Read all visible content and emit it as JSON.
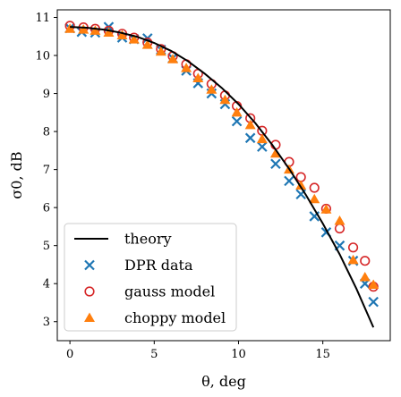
{
  "chart_data": {
    "type": "scatter",
    "xlabel": "θ, deg",
    "ylabel": "σ0, dB",
    "xlim": [
      -0.75,
      19.0
    ],
    "ylim": [
      2.5,
      11.2
    ],
    "xticks": [
      0,
      5,
      10,
      15
    ],
    "yticks": [
      3,
      4,
      5,
      6,
      7,
      8,
      9,
      10,
      11
    ],
    "grid": false,
    "legend_position": "lower-left",
    "series": [
      {
        "name": "theory",
        "kind": "line",
        "color": "#000000",
        "x": [
          0,
          1,
          2,
          3,
          4,
          5,
          6,
          7,
          8,
          9,
          10,
          11,
          12,
          13,
          14,
          15,
          16,
          17,
          18
        ],
        "y": [
          10.75,
          10.73,
          10.68,
          10.6,
          10.49,
          10.33,
          10.12,
          9.85,
          9.52,
          9.15,
          8.72,
          8.22,
          7.65,
          7.02,
          6.33,
          5.58,
          4.77,
          3.86,
          2.85
        ]
      },
      {
        "name": "DPR data",
        "kind": "x-marker",
        "color": "#1f77b4",
        "x": [
          0,
          0.7,
          1.5,
          2.3,
          3.1,
          3.8,
          4.6,
          5.4,
          6.1,
          6.9,
          7.6,
          8.4,
          9.2,
          9.9,
          10.7,
          11.4,
          12.2,
          13.0,
          13.7,
          14.5,
          15.2,
          16.0,
          16.8,
          17.5,
          18.0
        ],
        "y": [
          10.72,
          10.62,
          10.6,
          10.75,
          10.47,
          10.43,
          10.45,
          10.15,
          9.93,
          9.6,
          9.27,
          9.0,
          8.72,
          8.27,
          7.83,
          7.6,
          7.15,
          6.7,
          6.35,
          5.77,
          5.35,
          5.0,
          4.6,
          4.0,
          3.52
        ]
      },
      {
        "name": "gauss model",
        "kind": "circle",
        "color": "#d62728",
        "x": [
          0,
          0.8,
          1.5,
          2.3,
          3.1,
          3.8,
          4.6,
          5.4,
          6.1,
          6.9,
          7.6,
          8.4,
          9.2,
          9.9,
          10.7,
          11.4,
          12.2,
          13.0,
          13.7,
          14.5,
          15.2,
          16.0,
          16.8,
          17.5,
          18.0
        ],
        "y": [
          10.78,
          10.74,
          10.7,
          10.65,
          10.57,
          10.47,
          10.34,
          10.17,
          9.98,
          9.77,
          9.52,
          9.25,
          8.95,
          8.67,
          8.35,
          8.02,
          7.65,
          7.2,
          6.8,
          6.52,
          5.97,
          5.45,
          4.95,
          4.6,
          3.92
        ]
      },
      {
        "name": "choppy model",
        "kind": "triangle",
        "color": "#ff7f0e",
        "x": [
          0,
          0.8,
          1.5,
          2.3,
          3.1,
          3.8,
          4.6,
          5.4,
          6.1,
          6.9,
          7.6,
          8.4,
          9.2,
          9.9,
          10.7,
          11.4,
          12.2,
          13.0,
          13.7,
          14.5,
          15.2,
          16.0,
          16.8,
          17.5,
          18.0
        ],
        "y": [
          10.7,
          10.68,
          10.65,
          10.6,
          10.53,
          10.42,
          10.28,
          10.1,
          9.9,
          9.67,
          9.4,
          9.1,
          8.83,
          8.5,
          8.17,
          7.8,
          7.42,
          7.0,
          6.58,
          6.22,
          5.95,
          5.65,
          4.62,
          4.17,
          3.97
        ]
      }
    ]
  }
}
